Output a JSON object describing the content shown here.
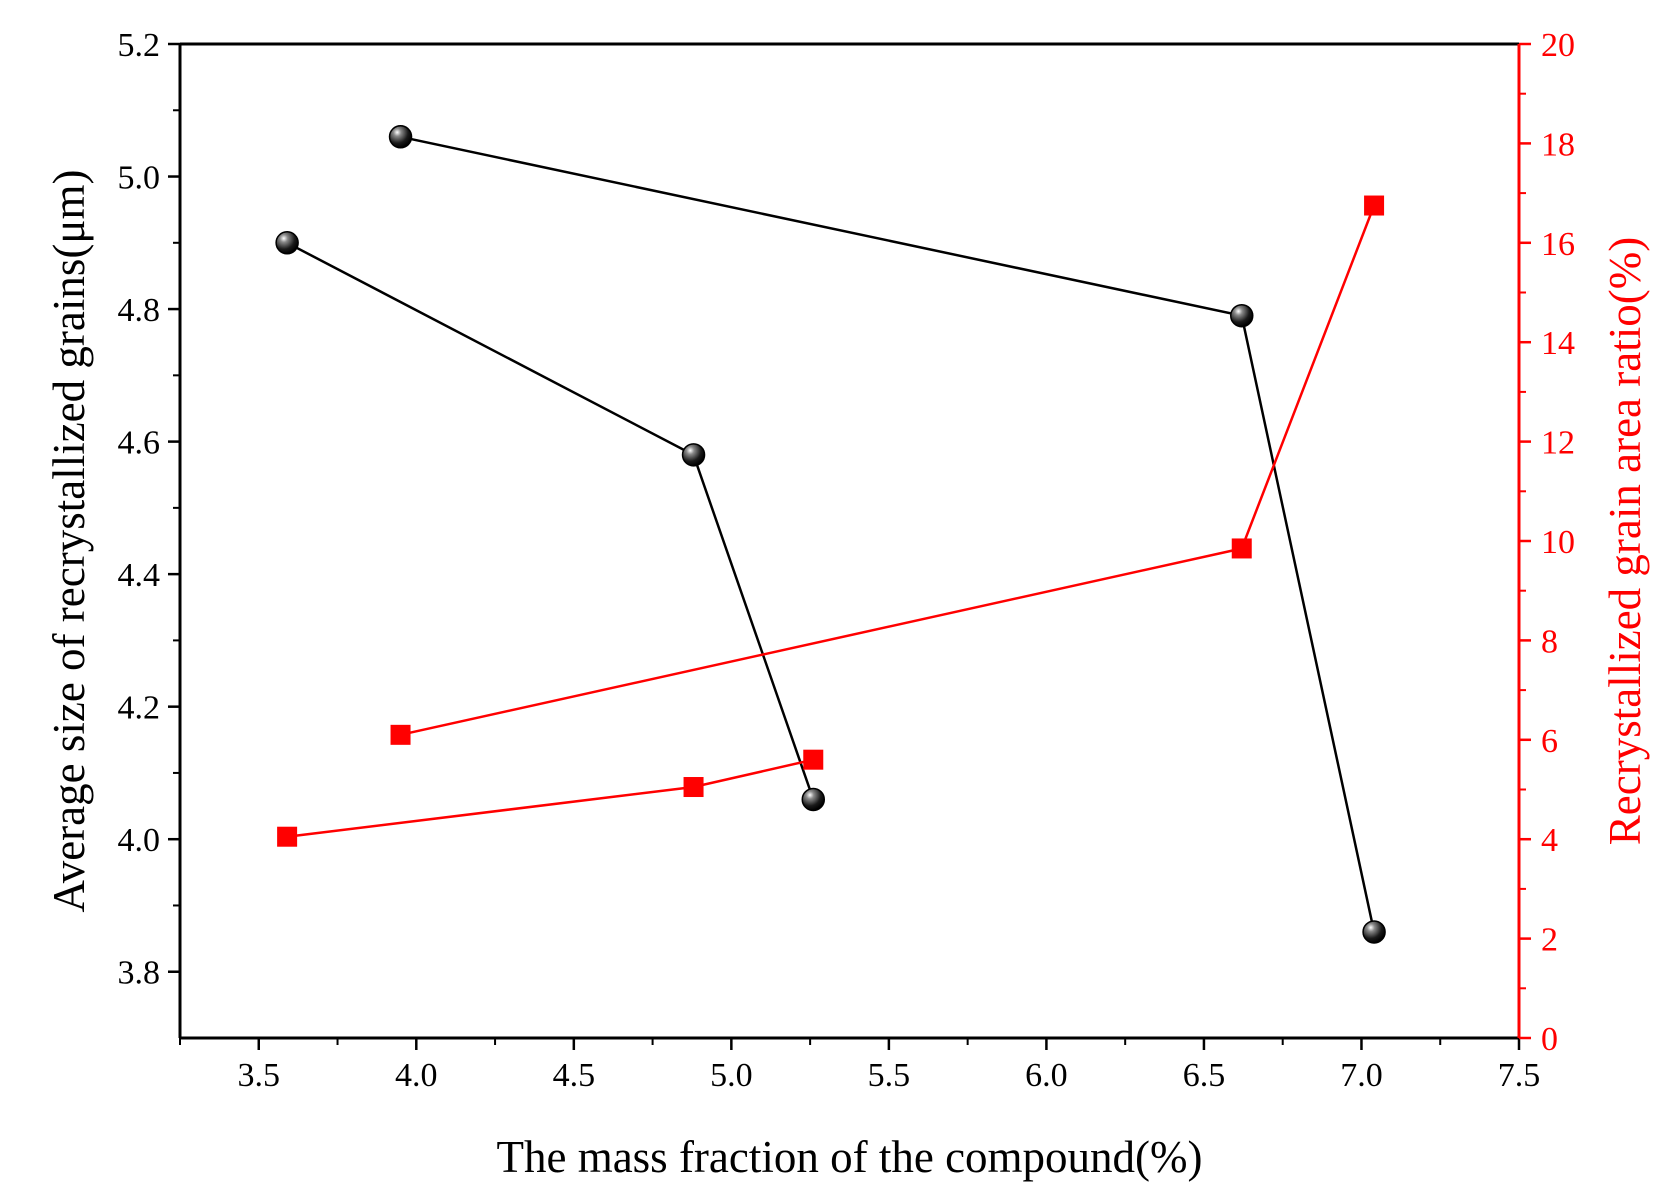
{
  "chart_data": {
    "type": "line",
    "title": "",
    "xlabel": "The mass fraction of the compound(%)",
    "ylabel_left": "Average size of recrystallized grains(μm)",
    "ylabel_right": "Recrystallized grain area ratio(%)",
    "xlim": [
      3.25,
      7.5
    ],
    "ylim_left": [
      3.7,
      5.2
    ],
    "ylim_right": [
      0,
      20
    ],
    "x_ticks": [
      "3.5",
      "4.0",
      "4.5",
      "5.0",
      "5.5",
      "6.0",
      "6.5",
      "7.0",
      "7.5"
    ],
    "y_left_ticks": [
      "3.8",
      "4.0",
      "4.2",
      "4.4",
      "4.6",
      "4.8",
      "5.0",
      "5.2"
    ],
    "y_right_ticks": [
      "0",
      "2",
      "4",
      "6",
      "8",
      "10",
      "12",
      "14",
      "16",
      "18",
      "20"
    ],
    "grid": false,
    "legend": "none",
    "colors": {
      "left_axis": "#000000",
      "right_axis": "#ff0000"
    },
    "series": [
      {
        "axis": "left",
        "marker": "sphere",
        "color": "#000000",
        "segments": [
          {
            "x": [
              3.59,
              4.88,
              5.26
            ],
            "y": [
              4.9,
              4.58,
              4.06
            ]
          },
          {
            "x": [
              3.95,
              6.62,
              7.04
            ],
            "y": [
              5.06,
              4.79,
              3.86
            ]
          }
        ]
      },
      {
        "axis": "right",
        "marker": "square",
        "color": "#ff0000",
        "segments": [
          {
            "x": [
              3.59,
              4.88,
              5.26
            ],
            "y": [
              4.05,
              5.05,
              5.6
            ]
          },
          {
            "x": [
              3.95,
              6.62,
              7.04
            ],
            "y": [
              6.1,
              9.85,
              16.75
            ]
          }
        ]
      }
    ]
  }
}
